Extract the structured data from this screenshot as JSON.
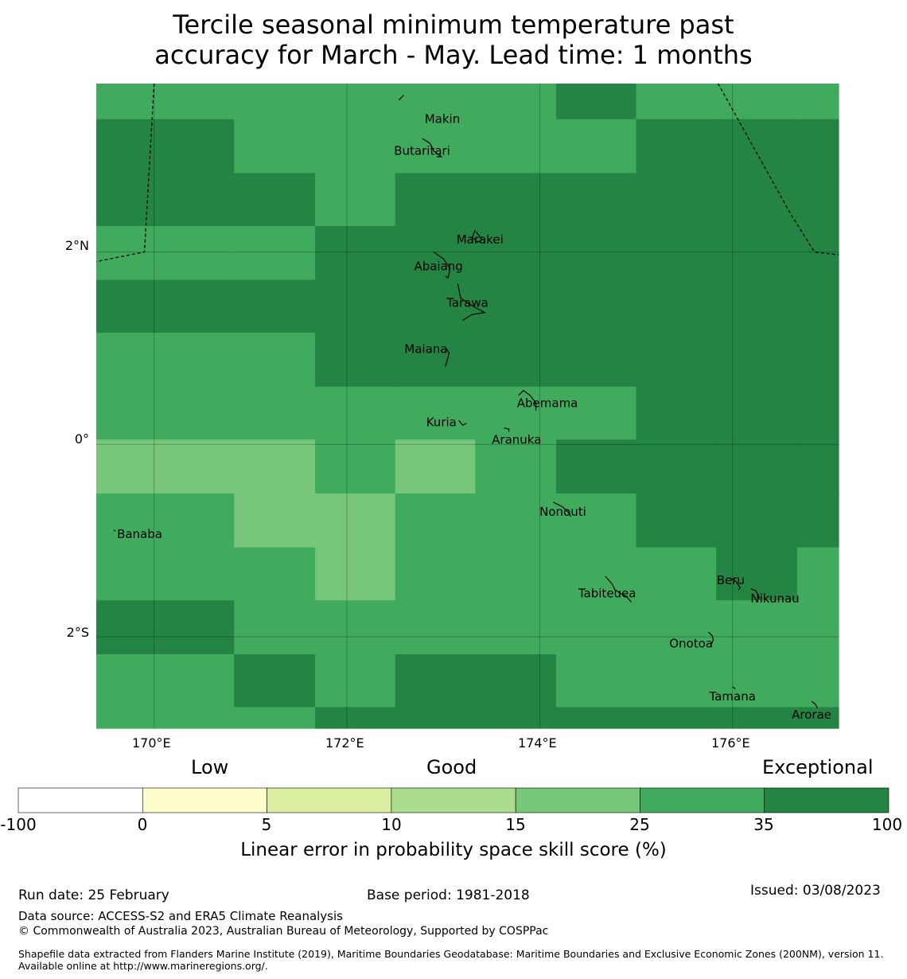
{
  "title": {
    "line1": "Tercile seasonal minimum temperature past",
    "line2": "accuracy for March - May. Lead time: 1 months"
  },
  "map": {
    "lon_range": [
      169.4,
      177.1
    ],
    "lat_range": [
      -2.95,
      3.75
    ],
    "grid_lons": [
      170,
      172,
      174,
      176
    ],
    "grid_lats": [
      2,
      0,
      -2
    ],
    "lon_labels": [
      "170°E",
      "172°E",
      "174°E",
      "176°E"
    ],
    "lat_labels": [
      "2°N",
      "0°",
      "2°S"
    ],
    "cell_col_edges": [
      169.4,
      170.83,
      171.67,
      172.5,
      173.33,
      174.17,
      175.0,
      175.83,
      176.67,
      177.1
    ],
    "cell_row_edges": [
      3.75,
      3.38,
      2.82,
      2.27,
      1.71,
      1.16,
      0.6,
      0.05,
      -0.51,
      -1.07,
      -1.62,
      -2.18,
      -2.73,
      -2.95
    ],
    "cells": [
      [
        "g35",
        "g35",
        "g35",
        "g35",
        "g35",
        "g100",
        "g35",
        "g35",
        "g35"
      ],
      [
        "g100",
        "g35",
        "g35",
        "g35",
        "g35",
        "g35",
        "g100",
        "g100",
        "g100"
      ],
      [
        "g100",
        "g100",
        "g35",
        "g100",
        "g100",
        "g100",
        "g100",
        "g100",
        "g100"
      ],
      [
        "g35",
        "g35",
        "g100",
        "g100",
        "g100",
        "g100",
        "g100",
        "g100",
        "g100"
      ],
      [
        "g100",
        "g100",
        "g100",
        "g100",
        "g100",
        "g100",
        "g100",
        "g100",
        "g100"
      ],
      [
        "g35",
        "g35",
        "g100",
        "g100",
        "g100",
        "g100",
        "g100",
        "g100",
        "g100"
      ],
      [
        "g35",
        "g35",
        "g35",
        "g35",
        "g35",
        "g35",
        "g100",
        "g100",
        "g100"
      ],
      [
        "g25",
        "g25",
        "g35",
        "g25",
        "g35",
        "g100",
        "g100",
        "g100",
        "g100"
      ],
      [
        "g35",
        "g25",
        "g25",
        "g35",
        "g35",
        "g35",
        "g100",
        "g100",
        "g100"
      ],
      [
        "g35",
        "g35",
        "g25",
        "g35",
        "g35",
        "g35",
        "g35",
        "g100",
        "g35"
      ],
      [
        "g100",
        "g35",
        "g35",
        "g35",
        "g35",
        "g35",
        "g35",
        "g35",
        "g35"
      ],
      [
        "g35",
        "g100",
        "g35",
        "g100",
        "g100",
        "g35",
        "g35",
        "g35",
        "g35"
      ],
      [
        "g35",
        "g35",
        "g100",
        "g100",
        "g100",
        "g100",
        "g100",
        "g100",
        "g100"
      ]
    ],
    "boundary_left": [
      [
        170.0,
        3.75
      ],
      [
        169.9,
        2.0
      ],
      [
        169.4,
        1.9
      ]
    ],
    "boundary_right": [
      [
        175.85,
        3.75
      ],
      [
        176.6,
        2.4
      ],
      [
        176.85,
        2.0
      ],
      [
        177.1,
        1.97
      ]
    ],
    "places": [
      {
        "name": "Makin",
        "lon": 172.99,
        "lat": 3.38
      },
      {
        "name": "Butaritari",
        "lon": 172.78,
        "lat": 3.05
      },
      {
        "name": "Marakei",
        "lon": 173.38,
        "lat": 2.13
      },
      {
        "name": "Abaiang",
        "lon": 172.95,
        "lat": 1.85
      },
      {
        "name": "Tarawa",
        "lon": 173.25,
        "lat": 1.47
      },
      {
        "name": "Maiana",
        "lon": 172.82,
        "lat": 0.99
      },
      {
        "name": "Abemama",
        "lon": 174.08,
        "lat": 0.43
      },
      {
        "name": "Kuria",
        "lon": 172.98,
        "lat": 0.23
      },
      {
        "name": "Aranuka",
        "lon": 173.76,
        "lat": 0.05
      },
      {
        "name": "Nonouti",
        "lon": 174.24,
        "lat": -0.7
      },
      {
        "name": "Banaba",
        "lon": 169.85,
        "lat": -0.93
      },
      {
        "name": "Beru",
        "lon": 175.98,
        "lat": -1.41
      },
      {
        "name": "Tabiteuea",
        "lon": 174.7,
        "lat": -1.55
      },
      {
        "name": "Nikunau",
        "lon": 176.44,
        "lat": -1.6
      },
      {
        "name": "Onotoa",
        "lon": 175.57,
        "lat": -2.07
      },
      {
        "name": "Tamana",
        "lon": 176.0,
        "lat": -2.62
      },
      {
        "name": "Arorae",
        "lon": 176.82,
        "lat": -2.81
      }
    ]
  },
  "legend": {
    "categories": [
      "Low",
      "Good",
      "Exceptional"
    ],
    "colors": [
      "#ffffff",
      "#fffdcb",
      "#dbefa2",
      "#abdd8e",
      "#78c679",
      "#41ab5d",
      "#238443"
    ],
    "ticks": [
      "-100",
      "0",
      "5",
      "10",
      "15",
      "25",
      "35",
      "100"
    ],
    "axis_label": "Linear error in probability space skill score (%)"
  },
  "cell_colors": {
    "g25": "#78c679",
    "g35": "#41ab5d",
    "g100": "#238443"
  },
  "footer": {
    "run_date": "Run date: 25 February",
    "base_period": "Base period: 1981-2018",
    "issued": "Issued: 03/08/2023",
    "data_source": "Data source: ACCESS-S2 and ERA5 Climate Reanalysis",
    "copyright": "© Commonwealth of Australia 2023, Australian Bureau of Meteorology, Supported by COSPPac",
    "shapefile": "Shapefile data extracted from Flanders Marine Institute (2019), Maritime Boundaries Geodatabase: Maritime Boundaries and Exclusive Economic Zones (200NM), version 11. Available online at http://www.marineregions.org/."
  }
}
